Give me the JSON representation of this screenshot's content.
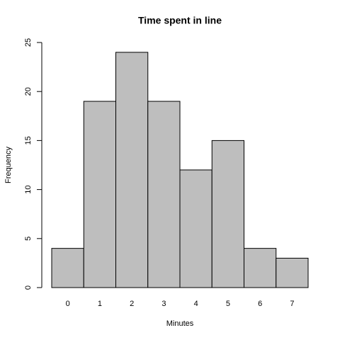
{
  "chart_data": {
    "type": "bar",
    "title": "Time spent in line",
    "x_label": "Minutes",
    "y_label": "Frequency",
    "categories": [
      "0",
      "1",
      "2",
      "3",
      "4",
      "5",
      "6",
      "7"
    ],
    "values": [
      4,
      19,
      24,
      19,
      12,
      15,
      4,
      3
    ],
    "color": "#bebebe",
    "ylim": [
      0,
      25
    ],
    "yticks": [
      0,
      5,
      10,
      15,
      20,
      25
    ]
  }
}
